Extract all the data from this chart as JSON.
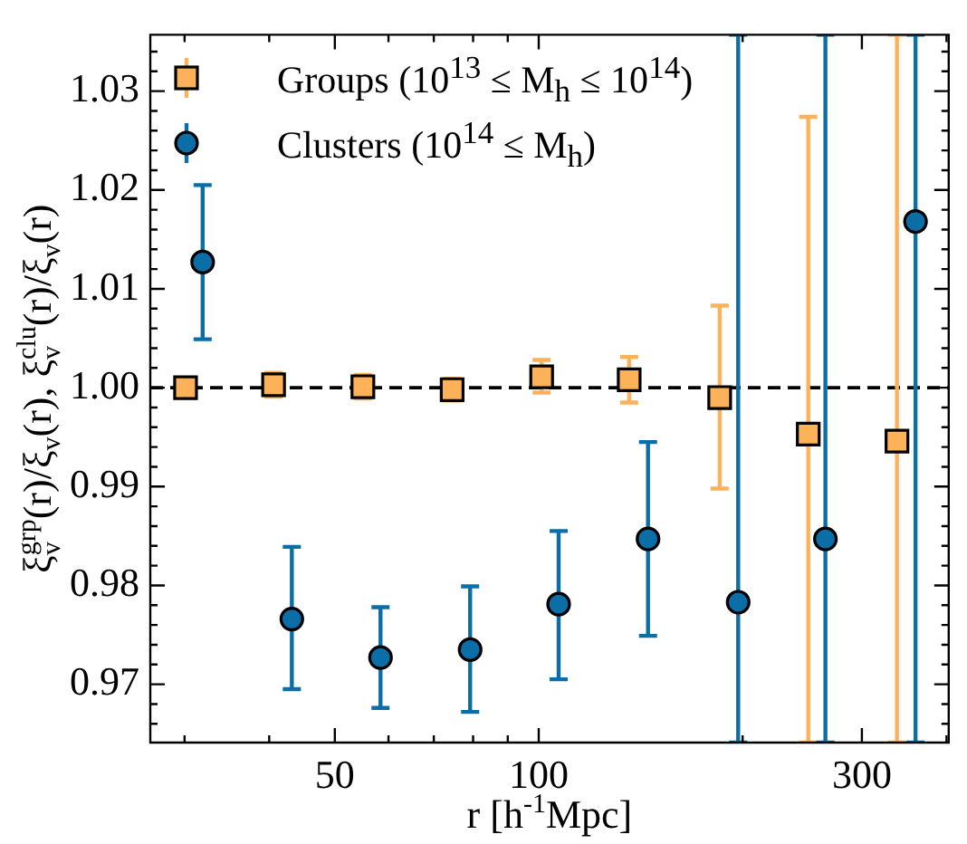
{
  "chart_data": {
    "type": "scatter",
    "xlabel": "r [h$^{-1}$Mpc]",
    "ylabel": "ξ$_{v}$$^{grp}$(r)/ξ$_{v}$(r), ξ$_{v}$$^{clu}$(r)/ξ$_{v}$(r)",
    "log": "x",
    "xlim": [
      26.7,
      403
    ],
    "xticks": [
      {
        "value": 30,
        "label": null
      },
      {
        "value": 40,
        "label": null
      },
      50,
      {
        "value": 60,
        "label": null
      },
      {
        "value": 70,
        "label": null
      },
      {
        "value": 80,
        "label": null
      },
      {
        "value": 90,
        "label": null
      },
      100,
      {
        "value": 200,
        "label": null
      },
      300,
      {
        "value": 400,
        "label": null
      }
    ],
    "ylim": [
      0.9641,
      1.0357
    ],
    "yticks": [
      {
        "value": 0.966,
        "label": null
      },
      {
        "value": 0.968,
        "label": null
      },
      {
        "value": 0.97,
        "label": "0.97"
      },
      {
        "value": 0.972,
        "label": null
      },
      {
        "value": 0.974,
        "label": null
      },
      {
        "value": 0.976,
        "label": null
      },
      {
        "value": 0.978,
        "label": null
      },
      {
        "value": 0.98,
        "label": "0.98"
      },
      {
        "value": 0.982,
        "label": null
      },
      {
        "value": 0.984,
        "label": null
      },
      {
        "value": 0.986,
        "label": null
      },
      {
        "value": 0.988,
        "label": null
      },
      {
        "value": 0.99,
        "label": "0.99"
      },
      {
        "value": 0.992,
        "label": null
      },
      {
        "value": 0.994,
        "label": null
      },
      {
        "value": 0.996,
        "label": null
      },
      {
        "value": 0.998,
        "label": null
      },
      {
        "value": 1.0,
        "label": "1.00"
      },
      {
        "value": 1.002,
        "label": null
      },
      {
        "value": 1.004,
        "label": null
      },
      {
        "value": 1.006,
        "label": null
      },
      {
        "value": 1.008,
        "label": null
      },
      {
        "value": 1.01,
        "label": "1.01"
      },
      {
        "value": 1.012,
        "label": null
      },
      {
        "value": 1.014,
        "label": null
      },
      {
        "value": 1.016,
        "label": null
      },
      {
        "value": 1.018,
        "label": null
      },
      {
        "value": 1.02,
        "label": "1.02"
      },
      {
        "value": 1.022,
        "label": null
      },
      {
        "value": 1.024,
        "label": null
      },
      {
        "value": 1.026,
        "label": null
      },
      {
        "value": 1.028,
        "label": null
      },
      {
        "value": 1.03,
        "label": "1.03"
      },
      {
        "value": 1.032,
        "label": null
      },
      {
        "value": 1.034,
        "label": null
      }
    ],
    "grid": false,
    "legend": "top left",
    "ref_lines": [
      {
        "axis": "y",
        "value": 1.0,
        "color": "#000000",
        "line_style": "dashed"
      }
    ],
    "series": [
      {
        "name": "Groups (10$^{13}$ ≤ M$_{h}$ ≤ 10$^{14}$)",
        "color": "#fdb25a",
        "marker": "square",
        "x": [
          30.1,
          40.6,
          55,
          74.5,
          101,
          136,
          185,
          250,
          338
        ],
        "values": [
          1.0,
          1.0003,
          1.0001,
          0.9998,
          1.0011,
          1.0008,
          0.999,
          0.9953,
          0.9946
        ],
        "errors": [
          [
            0.999,
            1.001
          ],
          [
            0.9991,
            1.0015
          ],
          [
            0.9989,
            1.0013
          ],
          [
            0.9987,
            1.0009
          ],
          [
            0.9995,
            1.0028
          ],
          [
            0.9985,
            1.0031
          ],
          [
            0.9898,
            1.0083
          ],
          [
            0.9641,
            1.0274
          ],
          [
            0.9641,
            1.0357
          ]
        ]
      },
      {
        "name": "Clusters (10$^{14}$ ≤ M$_{h}$)",
        "color": "#0b6ea6",
        "marker": "circle",
        "x": [
          31.9,
          43.2,
          58.4,
          79.2,
          107,
          145,
          197,
          265,
          360
        ],
        "values": [
          1.0127,
          0.9766,
          0.9727,
          0.9735,
          0.9781,
          0.9847,
          0.9783,
          0.9847,
          1.0168
        ],
        "errors": [
          [
            1.0049,
            1.0205
          ],
          [
            0.9695,
            0.9839
          ],
          [
            0.9676,
            0.9778
          ],
          [
            0.9672,
            0.9799
          ],
          [
            0.9705,
            0.9855
          ],
          [
            0.9749,
            0.9945
          ],
          [
            0.9641,
            1.0357
          ],
          [
            0.9641,
            1.0357
          ],
          [
            0.9641,
            1.0357
          ]
        ]
      }
    ]
  }
}
